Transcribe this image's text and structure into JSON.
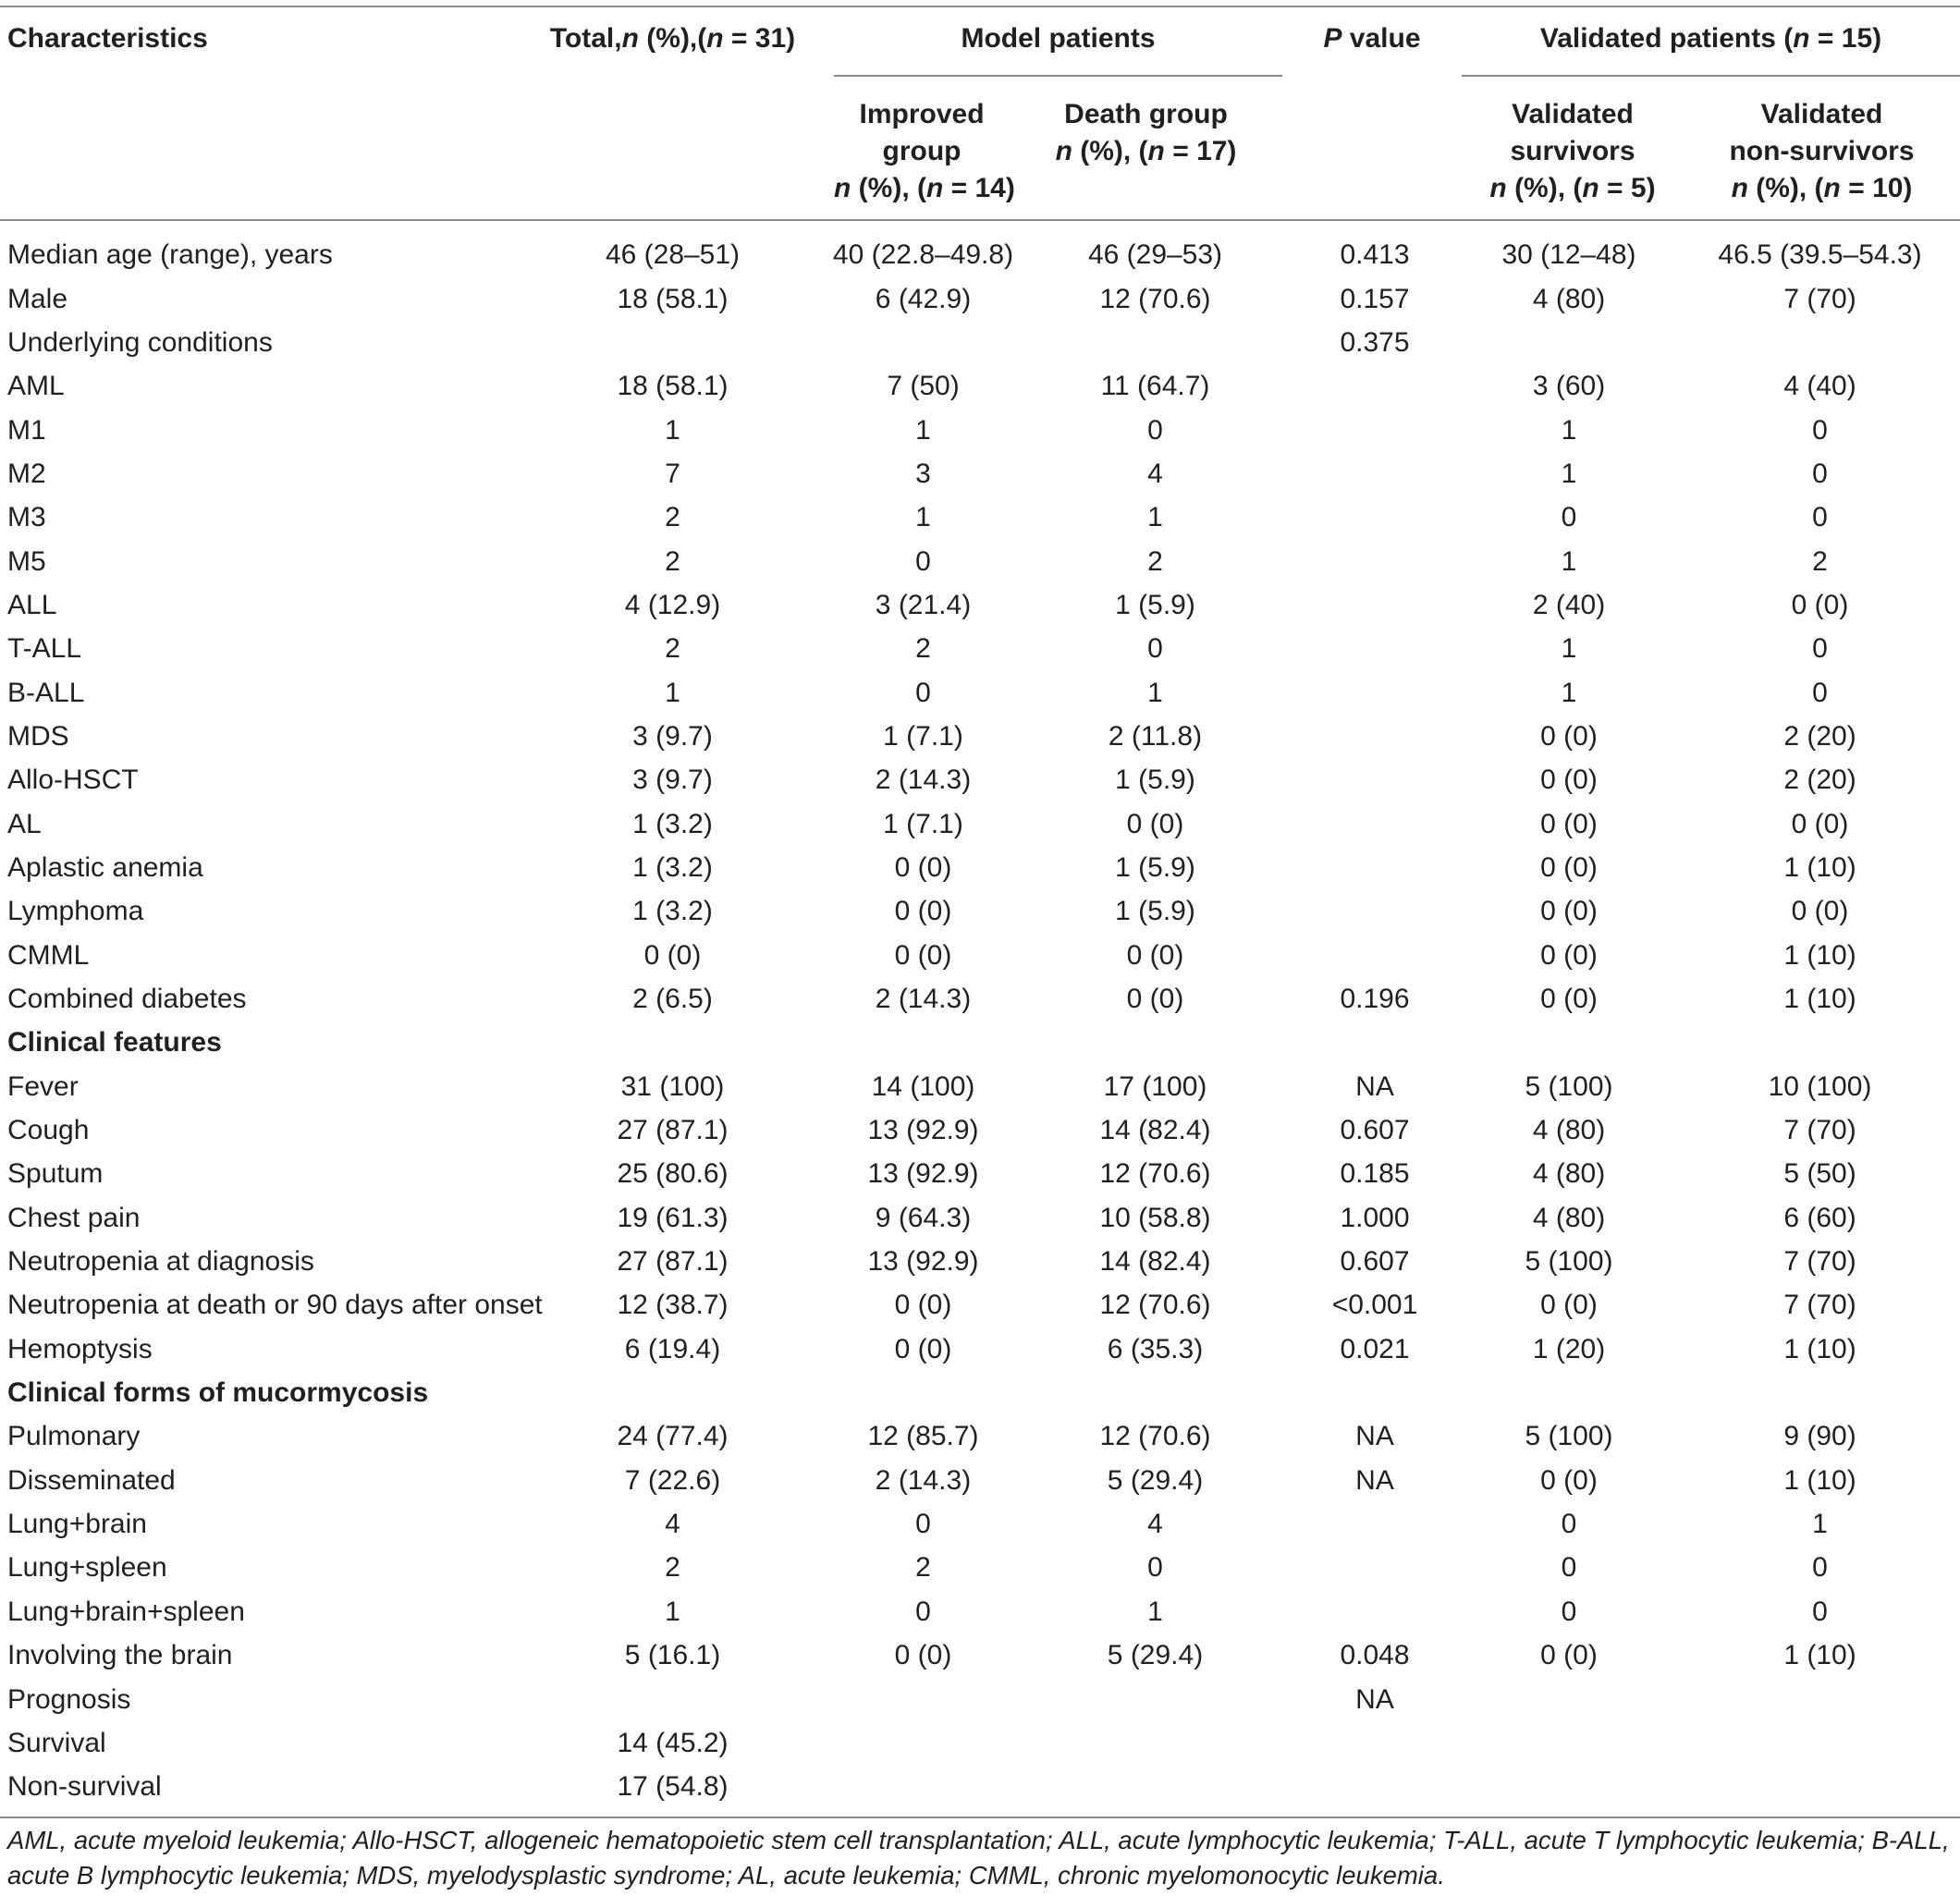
{
  "headers": {
    "characteristics": "Characteristics",
    "total": "Total,n (%),(n = 31)",
    "model_patients": "Model patients",
    "p_value": "P value",
    "validated_patients": "Validated patients (n = 15)",
    "improved_l1": "Improved",
    "improved_l2": "group",
    "improved_l3": "n (%), (n = 14)",
    "death_l1": "Death group",
    "death_l2": "n (%), (n = 17)",
    "vs_l1": "Validated",
    "vs_l2": "survivors",
    "vs_l3": "n (%), (n = 5)",
    "vn_l1": "Validated",
    "vn_l2": "non-survivors",
    "vn_l3": "n (%), (n = 10)"
  },
  "rows": [
    {
      "label": "Median age (range), years",
      "total": "46 (28–51)",
      "improved": "40 (22.8–49.8)",
      "death": "46 (29–53)",
      "p": "0.413",
      "val_surv": "30 (12–48)",
      "val_nonsurv": "46.5 (39.5–54.3)"
    },
    {
      "label": "Male",
      "total": "18 (58.1)",
      "improved": "6 (42.9)",
      "death": "12 (70.6)",
      "p": "0.157",
      "val_surv": "4 (80)",
      "val_nonsurv": "7 (70)"
    },
    {
      "label": "Underlying conditions",
      "total": "",
      "improved": "",
      "death": "",
      "p": "0.375",
      "val_surv": "",
      "val_nonsurv": ""
    },
    {
      "label": "AML",
      "total": "18 (58.1)",
      "improved": "7 (50)",
      "death": "11 (64.7)",
      "p": "",
      "val_surv": "3 (60)",
      "val_nonsurv": "4 (40)"
    },
    {
      "label": "M1",
      "total": "1",
      "improved": "1",
      "death": "0",
      "p": "",
      "val_surv": "1",
      "val_nonsurv": "0"
    },
    {
      "label": "M2",
      "total": "7",
      "improved": "3",
      "death": "4",
      "p": "",
      "val_surv": "1",
      "val_nonsurv": "0"
    },
    {
      "label": "M3",
      "total": "2",
      "improved": "1",
      "death": "1",
      "p": "",
      "val_surv": "0",
      "val_nonsurv": "0"
    },
    {
      "label": "M5",
      "total": "2",
      "improved": "0",
      "death": "2",
      "p": "",
      "val_surv": "1",
      "val_nonsurv": "2"
    },
    {
      "label": "ALL",
      "total": "4 (12.9)",
      "improved": "3 (21.4)",
      "death": "1 (5.9)",
      "p": "",
      "val_surv": "2 (40)",
      "val_nonsurv": "0 (0)"
    },
    {
      "label": "T-ALL",
      "total": "2",
      "improved": "2",
      "death": "0",
      "p": "",
      "val_surv": "1",
      "val_nonsurv": "0"
    },
    {
      "label": "B-ALL",
      "total": "1",
      "improved": "0",
      "death": "1",
      "p": "",
      "val_surv": "1",
      "val_nonsurv": "0"
    },
    {
      "label": "MDS",
      "total": "3 (9.7)",
      "improved": "1 (7.1)",
      "death": "2 (11.8)",
      "p": "",
      "val_surv": "0 (0)",
      "val_nonsurv": "2 (20)"
    },
    {
      "label": "Allo-HSCT",
      "total": "3 (9.7)",
      "improved": "2 (14.3)",
      "death": "1 (5.9)",
      "p": "",
      "val_surv": "0 (0)",
      "val_nonsurv": "2 (20)"
    },
    {
      "label": "AL",
      "total": "1 (3.2)",
      "improved": "1 (7.1)",
      "death": "0 (0)",
      "p": "",
      "val_surv": "0 (0)",
      "val_nonsurv": "0 (0)"
    },
    {
      "label": "Aplastic anemia",
      "total": "1 (3.2)",
      "improved": "0 (0)",
      "death": "1 (5.9)",
      "p": "",
      "val_surv": "0 (0)",
      "val_nonsurv": "1 (10)"
    },
    {
      "label": "Lymphoma",
      "total": "1 (3.2)",
      "improved": "0 (0)",
      "death": "1 (5.9)",
      "p": "",
      "val_surv": "0 (0)",
      "val_nonsurv": "0 (0)"
    },
    {
      "label": "CMML",
      "total": "0 (0)",
      "improved": "0 (0)",
      "death": "0 (0)",
      "p": "",
      "val_surv": "0 (0)",
      "val_nonsurv": "1 (10)"
    },
    {
      "label": "Combined diabetes",
      "total": "2 (6.5)",
      "improved": "2 (14.3)",
      "death": "0 (0)",
      "p": "0.196",
      "val_surv": "0 (0)",
      "val_nonsurv": "1 (10)"
    },
    {
      "label": "Clinical features",
      "section": true,
      "total": "",
      "improved": "",
      "death": "",
      "p": "",
      "val_surv": "",
      "val_nonsurv": ""
    },
    {
      "label": "Fever",
      "total": "31 (100)",
      "improved": "14 (100)",
      "death": "17 (100)",
      "p": "NA",
      "val_surv": "5 (100)",
      "val_nonsurv": "10 (100)"
    },
    {
      "label": "Cough",
      "total": "27 (87.1)",
      "improved": "13 (92.9)",
      "death": "14 (82.4)",
      "p": "0.607",
      "val_surv": "4 (80)",
      "val_nonsurv": "7 (70)"
    },
    {
      "label": "Sputum",
      "total": "25 (80.6)",
      "improved": "13 (92.9)",
      "death": "12 (70.6)",
      "p": "0.185",
      "val_surv": "4 (80)",
      "val_nonsurv": "5 (50)"
    },
    {
      "label": "Chest pain",
      "total": "19 (61.3)",
      "improved": "9 (64.3)",
      "death": "10 (58.8)",
      "p": "1.000",
      "val_surv": "4 (80)",
      "val_nonsurv": "6 (60)"
    },
    {
      "label": "Neutropenia at diagnosis",
      "total": "27 (87.1)",
      "improved": "13 (92.9)",
      "death": "14 (82.4)",
      "p": "0.607",
      "val_surv": "5 (100)",
      "val_nonsurv": "7 (70)"
    },
    {
      "label": "Neutropenia at death or 90 days after onset",
      "total": "12 (38.7)",
      "improved": "0 (0)",
      "death": "12 (70.6)",
      "p": "<0.001",
      "val_surv": "0 (0)",
      "val_nonsurv": "7 (70)"
    },
    {
      "label": "Hemoptysis",
      "total": "6 (19.4)",
      "improved": "0 (0)",
      "death": "6 (35.3)",
      "p": "0.021",
      "val_surv": "1 (20)",
      "val_nonsurv": "1 (10)"
    },
    {
      "label": "Clinical forms of mucormycosis",
      "section": true,
      "total": "",
      "improved": "",
      "death": "",
      "p": "",
      "val_surv": "",
      "val_nonsurv": ""
    },
    {
      "label": "Pulmonary",
      "total": "24 (77.4)",
      "improved": "12 (85.7)",
      "death": "12 (70.6)",
      "p": "NA",
      "val_surv": "5 (100)",
      "val_nonsurv": "9 (90)"
    },
    {
      "label": "Disseminated",
      "total": "7 (22.6)",
      "improved": "2 (14.3)",
      "death": "5 (29.4)",
      "p": "NA",
      "val_surv": "0 (0)",
      "val_nonsurv": "1 (10)"
    },
    {
      "label": "Lung+brain",
      "total": "4",
      "improved": "0",
      "death": "4",
      "p": "",
      "val_surv": "0",
      "val_nonsurv": "1"
    },
    {
      "label": "Lung+spleen",
      "total": "2",
      "improved": "2",
      "death": "0",
      "p": "",
      "val_surv": "0",
      "val_nonsurv": "0"
    },
    {
      "label": "Lung+brain+spleen",
      "total": "1",
      "improved": "0",
      "death": "1",
      "p": "",
      "val_surv": "0",
      "val_nonsurv": "0"
    },
    {
      "label": "Involving the brain",
      "total": "5 (16.1)",
      "improved": "0 (0)",
      "death": "5 (29.4)",
      "p": "0.048",
      "val_surv": "0 (0)",
      "val_nonsurv": "1 (10)"
    },
    {
      "label": "Prognosis",
      "total": "",
      "improved": "",
      "death": "",
      "p": "NA",
      "val_surv": "",
      "val_nonsurv": ""
    },
    {
      "label": "Survival",
      "total": "14 (45.2)",
      "improved": "",
      "death": "",
      "p": "",
      "val_surv": "",
      "val_nonsurv": ""
    },
    {
      "label": "Non-survival",
      "total": "17 (54.8)",
      "improved": "",
      "death": "",
      "p": "",
      "val_surv": "",
      "val_nonsurv": ""
    }
  ],
  "footnote": "AML, acute myeloid leukemia; Allo-HSCT, allogeneic hematopoietic stem cell transplantation; ALL, acute lymphocytic leukemia; T-ALL, acute T lymphocytic leukemia; B-ALL, acute B lymphocytic leukemia; MDS, myelodysplastic syndrome; AL, acute leukemia; CMML, chronic myelomonocytic leukemia."
}
